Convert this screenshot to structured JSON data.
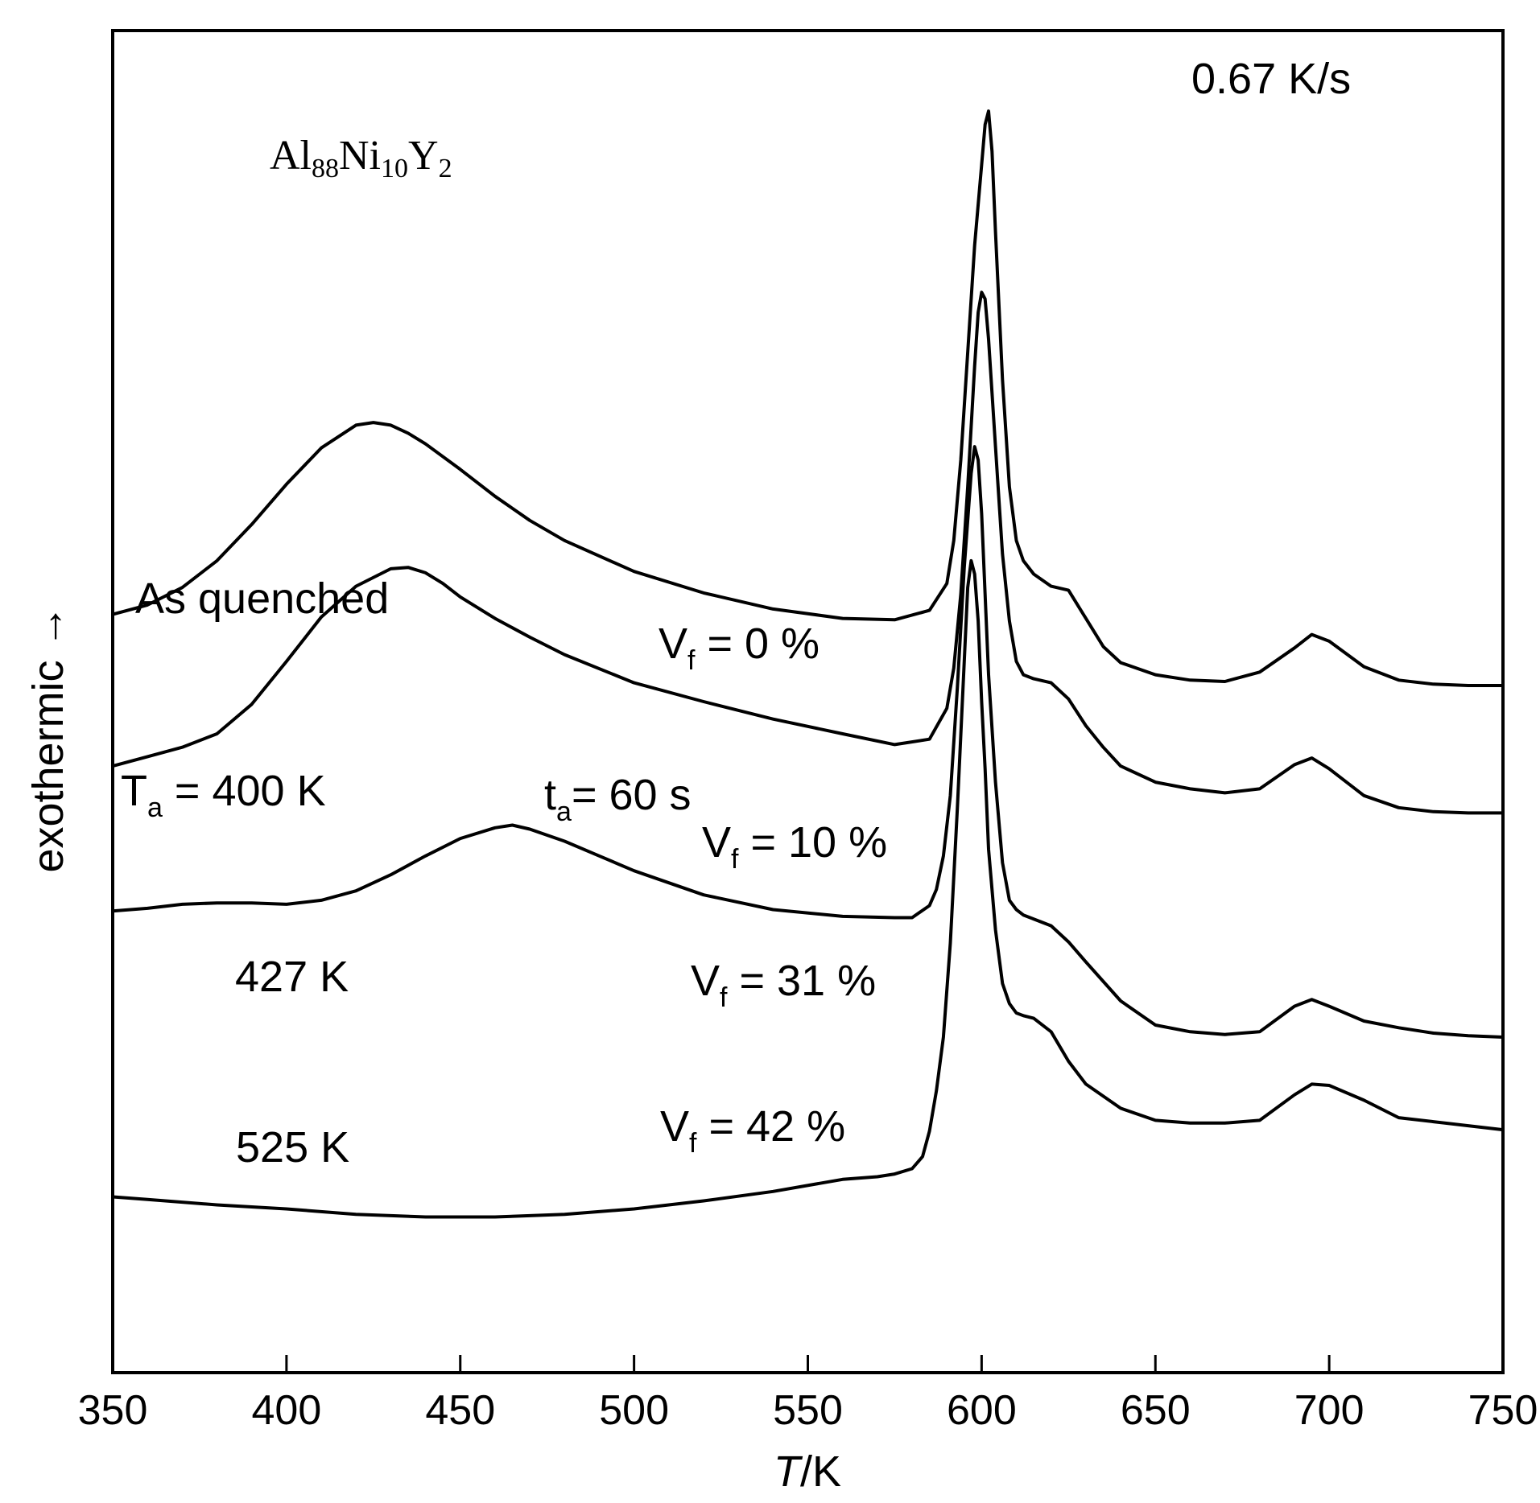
{
  "chart_data": {
    "type": "line",
    "title": "",
    "heating_rate": "0.67 K/s",
    "alloy": {
      "base": "Al",
      "s1": "88",
      "e2": "Ni",
      "s2": "10",
      "e3": "Y",
      "s3": "2"
    },
    "xlabel": {
      "var": "T",
      "unit": "/K"
    },
    "ylabel": "exothermic →",
    "xlim": [
      350,
      750
    ],
    "ylim": [
      0,
      100
    ],
    "xticks": [
      350,
      400,
      450,
      500,
      550,
      600,
      650,
      700,
      750
    ],
    "tick_labels": [
      "350",
      "400",
      "450",
      "500",
      "550",
      "600",
      "650",
      "700",
      "750"
    ],
    "annotations": {
      "as_quenched": "As quenched",
      "vf0": {
        "main": "V",
        "sub": "f",
        "rest": " = 0 %"
      },
      "ta_temp": {
        "main": "T",
        "sub": "a",
        "rest": " = 400 K"
      },
      "ta_time": {
        "main": "t",
        "sub": "a",
        "rest": "= 60 s"
      },
      "vf10": {
        "main": "V",
        "sub": "f",
        "rest": " = 10 %"
      },
      "k427": "427 K",
      "vf31": {
        "main": "V",
        "sub": "f",
        "rest": " = 31 %"
      },
      "k525": "525 K",
      "vf42": {
        "main": "V",
        "sub": "f",
        "rest": " = 42 %"
      }
    },
    "series": [
      {
        "name": "As quenched (Vf = 0 %)",
        "x": [
          350,
          360,
          370,
          380,
          390,
          400,
          410,
          420,
          425,
          430,
          435,
          440,
          450,
          460,
          470,
          480,
          500,
          520,
          540,
          560,
          575,
          585,
          590,
          592,
          594,
          596,
          598,
          600,
          601,
          602,
          603,
          604,
          606,
          608,
          610,
          612,
          615,
          620,
          625,
          630,
          635,
          640,
          650,
          660,
          670,
          680,
          690,
          695,
          700,
          710,
          720,
          730,
          740,
          750
        ],
        "y": [
          56.5,
          57.2,
          58.5,
          60.5,
          63.2,
          66.2,
          68.9,
          70.6,
          70.8,
          70.6,
          70,
          69.2,
          67.3,
          65.3,
          63.5,
          62,
          59.7,
          58.1,
          56.9,
          56.2,
          56.1,
          56.8,
          58.8,
          62,
          68,
          76,
          84,
          90,
          93,
          94,
          91,
          85,
          74,
          66,
          62,
          60.5,
          59.5,
          58.6,
          58.3,
          56.2,
          54.1,
          52.9,
          52,
          51.6,
          51.5,
          52.2,
          54,
          55,
          54.5,
          52.6,
          51.6,
          51.3,
          51.2,
          51.2
        ]
      },
      {
        "name": "Ta = 400 K, ta = 60 s (Vf = 10 %)",
        "x": [
          350,
          360,
          370,
          380,
          390,
          400,
          410,
          420,
          430,
          435,
          440,
          445,
          450,
          460,
          470,
          480,
          500,
          520,
          540,
          560,
          575,
          585,
          590,
          592,
          594,
          596,
          598,
          599,
          600,
          601,
          602,
          604,
          606,
          608,
          610,
          612,
          615,
          620,
          625,
          630,
          635,
          640,
          650,
          660,
          670,
          680,
          690,
          695,
          700,
          710,
          720,
          730,
          740,
          750
        ],
        "y": [
          45.2,
          45.9,
          46.6,
          47.6,
          49.8,
          53,
          56.3,
          58.6,
          59.9,
          60,
          59.6,
          58.8,
          57.8,
          56.2,
          54.8,
          53.5,
          51.4,
          50,
          48.7,
          47.6,
          46.8,
          47.2,
          49.5,
          52.5,
          58,
          66,
          75,
          79,
          80.5,
          80,
          77,
          69,
          61,
          56,
          53,
          52,
          51.7,
          51.4,
          50.2,
          48.2,
          46.6,
          45.2,
          44,
          43.5,
          43.2,
          43.5,
          45.3,
          45.8,
          45,
          43,
          42.1,
          41.8,
          41.7,
          41.7
        ]
      },
      {
        "name": "427 K (Vf = 31 %)",
        "x": [
          350,
          360,
          370,
          380,
          390,
          400,
          410,
          420,
          430,
          440,
          450,
          460,
          465,
          470,
          480,
          490,
          500,
          520,
          540,
          560,
          575,
          580,
          585,
          587,
          589,
          591,
          593,
          595,
          597,
          598,
          599,
          600,
          601,
          602,
          604,
          606,
          608,
          610,
          612,
          615,
          620,
          625,
          630,
          640,
          650,
          660,
          670,
          680,
          690,
          695,
          700,
          710,
          720,
          730,
          740,
          750
        ],
        "y": [
          34.4,
          34.6,
          34.9,
          35,
          35,
          34.9,
          35.2,
          35.9,
          37.1,
          38.5,
          39.8,
          40.6,
          40.8,
          40.5,
          39.6,
          38.5,
          37.4,
          35.6,
          34.5,
          34,
          33.9,
          33.9,
          34.8,
          36,
          38.5,
          43,
          51,
          60,
          67,
          69,
          68,
          64,
          58,
          52,
          44,
          38,
          35.2,
          34.5,
          34.1,
          33.8,
          33.3,
          32.1,
          30.6,
          27.7,
          25.9,
          25.4,
          25.2,
          25.4,
          27.3,
          27.8,
          27.3,
          26.2,
          25.7,
          25.3,
          25.1,
          25
        ]
      },
      {
        "name": "525 K (Vf = 42 %)",
        "x": [
          350,
          360,
          380,
          400,
          420,
          440,
          460,
          480,
          500,
          520,
          540,
          560,
          570,
          575,
          580,
          583,
          585,
          587,
          589,
          591,
          593,
          595,
          596,
          597,
          598,
          599,
          600,
          601,
          602,
          604,
          606,
          608,
          610,
          612,
          615,
          620,
          625,
          630,
          640,
          650,
          660,
          670,
          680,
          690,
          695,
          700,
          710,
          720,
          730,
          740,
          750
        ],
        "y": [
          13.1,
          12.9,
          12.5,
          12.2,
          11.8,
          11.6,
          11.6,
          11.8,
          12.2,
          12.8,
          13.5,
          14.4,
          14.6,
          14.8,
          15.2,
          16.1,
          18,
          21,
          25,
          32,
          42,
          53,
          58.5,
          60.5,
          59.5,
          56,
          50,
          45,
          39,
          33,
          29,
          27.5,
          26.8,
          26.6,
          26.4,
          25.4,
          23.2,
          21.5,
          19.7,
          18.8,
          18.6,
          18.6,
          18.8,
          20.7,
          21.5,
          21.4,
          20.3,
          19,
          18.7,
          18.4,
          18.1
        ]
      }
    ]
  }
}
